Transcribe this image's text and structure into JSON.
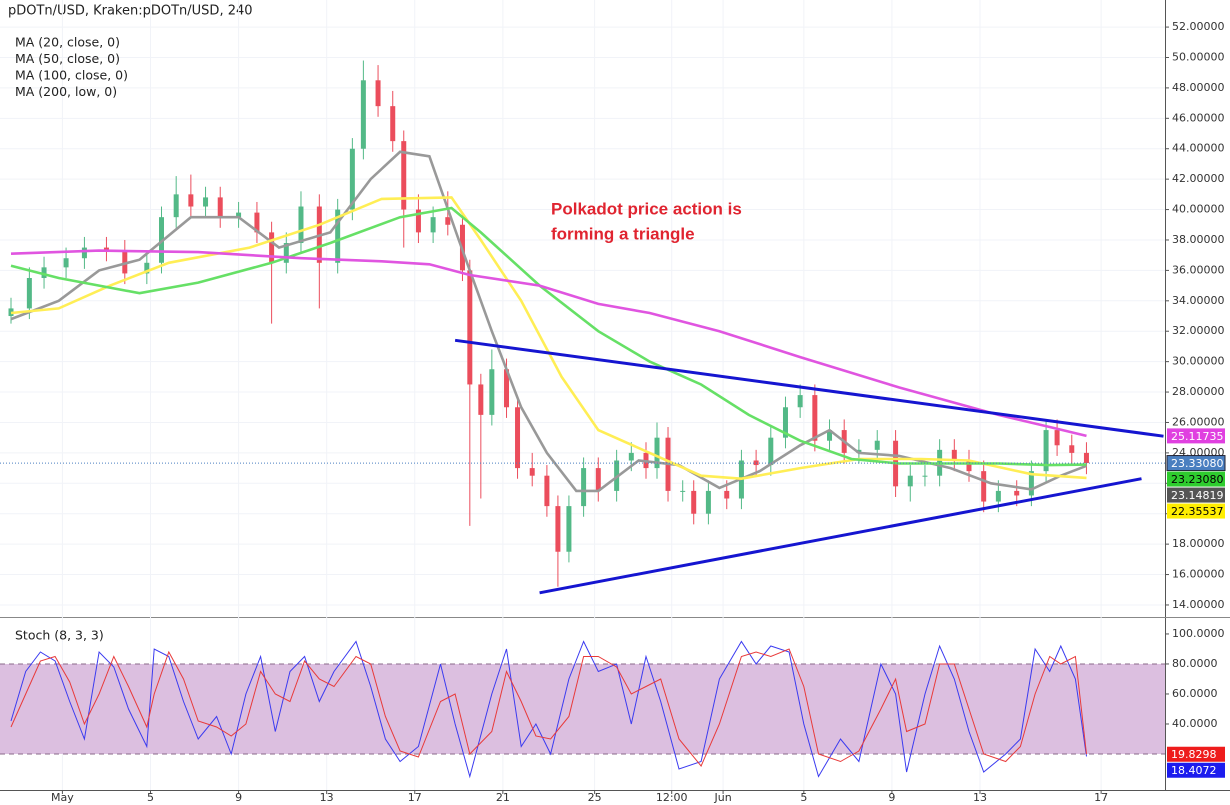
{
  "header": "pDOTn/USD, Kraken:pDOTn/USD, 240",
  "chart_data": [
    {
      "type": "candlestick",
      "annotation": [
        "Polkadot price action is",
        "forming a triangle"
      ],
      "up_color": "#53b987",
      "down_color": "#eb4d5c",
      "xlim": [
        0,
        317.4
      ],
      "ylim": [
        13.34,
        53.78
      ],
      "xticks": [
        {
          "value": 17,
          "label": "May"
        },
        {
          "value": 41,
          "label": "5"
        },
        {
          "value": 65,
          "label": "9"
        },
        {
          "value": 89,
          "label": "13"
        },
        {
          "value": 113,
          "label": "17"
        },
        {
          "value": 137,
          "label": "21"
        },
        {
          "value": 162,
          "label": "25"
        },
        {
          "value": 183,
          "label": "12:00"
        },
        {
          "value": 197,
          "label": "Jun"
        },
        {
          "value": 219,
          "label": "5"
        },
        {
          "value": 243,
          "label": "9"
        },
        {
          "value": 267,
          "label": "13"
        },
        {
          "value": 300,
          "label": "17"
        }
      ],
      "yticks": [
        {
          "value": 14,
          "label": "14.00000"
        },
        {
          "value": 16,
          "label": "16.00000"
        },
        {
          "value": 18,
          "label": "18.00000"
        },
        {
          "value": 20,
          "label": "20.00000"
        },
        {
          "value": 22,
          "label": "22.00000"
        },
        {
          "value": 24,
          "label": "24.00000"
        },
        {
          "value": 26,
          "label": "26.00000"
        },
        {
          "value": 28,
          "label": "28.00000"
        },
        {
          "value": 30,
          "label": "30.00000"
        },
        {
          "value": 32,
          "label": "32.00000"
        },
        {
          "value": 34,
          "label": "34.00000"
        },
        {
          "value": 36,
          "label": "36.00000"
        },
        {
          "value": 38,
          "label": "38.00000"
        },
        {
          "value": 40,
          "label": "40.00000"
        },
        {
          "value": 42,
          "label": "42.00000"
        },
        {
          "value": 44,
          "label": "44.00000"
        },
        {
          "value": 46,
          "label": "46.00000"
        },
        {
          "value": 48,
          "label": "48.00000"
        },
        {
          "value": 50,
          "label": "50.00000"
        },
        {
          "value": 52,
          "label": "52.00000"
        }
      ],
      "grid": true,
      "x": [
        3,
        8,
        12,
        18,
        23,
        29,
        34,
        40,
        44,
        48,
        52,
        56,
        60,
        65,
        70,
        74,
        78,
        82,
        87,
        92,
        96,
        99,
        103,
        107,
        110,
        114,
        118,
        122,
        126,
        128,
        131,
        134,
        138,
        141,
        145,
        149,
        152,
        155,
        159,
        163,
        168,
        172,
        176,
        179,
        182,
        186,
        189,
        193,
        198,
        202,
        206,
        210,
        214,
        218,
        222,
        226,
        230,
        234,
        239,
        244,
        248,
        252,
        256,
        260,
        264,
        268,
        272,
        277,
        281,
        285,
        288,
        292,
        296
      ],
      "open": [
        33,
        33.5,
        35.5,
        36.2,
        36.8,
        37.5,
        37.3,
        35.8,
        36.5,
        39.5,
        41,
        40.2,
        40.8,
        39.5,
        39.8,
        38.5,
        36.5,
        37.8,
        40.2,
        36.5,
        40,
        44,
        48.5,
        46.8,
        44.5,
        40,
        38.5,
        39.5,
        39,
        36,
        28.5,
        26.5,
        29.5,
        27,
        23,
        22.5,
        20.5,
        17.5,
        20.5,
        23,
        21.5,
        23.5,
        24,
        23,
        25,
        21.5,
        21.5,
        20,
        21.5,
        21,
        23.5,
        23.2,
        25,
        27,
        27.8,
        24.8,
        25.5,
        24,
        24.2,
        24.8,
        21.8,
        22.5,
        22.5,
        24.2,
        23.5,
        22.8,
        20.8,
        21.5,
        21.2,
        22.8,
        25.5,
        24.5,
        24
      ],
      "high": [
        34.2,
        36.2,
        36.9,
        37.5,
        38.2,
        38.2,
        38,
        37.2,
        40.2,
        42.2,
        42.3,
        41.5,
        41.5,
        40.5,
        40.5,
        39.2,
        38.5,
        41.2,
        41,
        40.7,
        44.7,
        49.8,
        49.5,
        47.8,
        45.2,
        41,
        40.2,
        41.2,
        39.7,
        36.7,
        29.2,
        30.8,
        30.2,
        27.7,
        24,
        23.2,
        21.2,
        21.2,
        23.7,
        23.7,
        24.2,
        24.7,
        24.7,
        26,
        25.7,
        22.2,
        22.2,
        22.2,
        22.2,
        24.2,
        24.2,
        25.7,
        27.7,
        28.5,
        28.5,
        26.2,
        26.2,
        24.9,
        25.5,
        25.5,
        23.2,
        23.2,
        24.9,
        24.9,
        24.2,
        23.5,
        22.2,
        22.2,
        23.5,
        26.2,
        26.2,
        25.2,
        24.7
      ],
      "low": [
        32.5,
        32.8,
        34.8,
        35.5,
        36.1,
        36.6,
        35.1,
        35.1,
        35.8,
        38.8,
        39.5,
        39.5,
        38.8,
        38.8,
        37.8,
        32.5,
        35.8,
        37.1,
        33.5,
        35.8,
        39.3,
        43.3,
        46.1,
        43.8,
        37.5,
        37.8,
        37.8,
        38.3,
        35.3,
        19.2,
        21,
        25.8,
        26.3,
        22.3,
        21.8,
        19.8,
        15.2,
        16.8,
        19.8,
        20.8,
        20.8,
        22.8,
        22.3,
        22.3,
        20.8,
        20.8,
        19.3,
        19.3,
        20.3,
        20.3,
        22.5,
        22.5,
        24.3,
        26.3,
        24.1,
        24.1,
        23.3,
        23.3,
        23.5,
        21.1,
        20.8,
        21.8,
        21.8,
        22.8,
        22.1,
        20.1,
        20.1,
        20.5,
        20.5,
        22.1,
        23.8,
        23.3,
        22.6
      ],
      "close": [
        33.5,
        35.5,
        36.2,
        36.8,
        37.5,
        37.3,
        35.8,
        36.5,
        39.5,
        41,
        40.2,
        40.8,
        39.5,
        39.8,
        38.5,
        36.5,
        37.8,
        40.2,
        36.5,
        40,
        44,
        48.5,
        46.8,
        44.5,
        40,
        38.5,
        39.5,
        39,
        36,
        28.5,
        26.5,
        29.5,
        27,
        23,
        22.5,
        20.5,
        17.5,
        20.5,
        23,
        21.5,
        23.5,
        24,
        23,
        25,
        21.5,
        21.5,
        20,
        21.5,
        21,
        23.5,
        23.2,
        25,
        27,
        27.8,
        24.8,
        25.5,
        24,
        24.2,
        24.8,
        21.8,
        22.5,
        22.5,
        24.2,
        23.5,
        22.8,
        20.8,
        21.5,
        21.2,
        22.8,
        25.5,
        24.5,
        24,
        23.3308
      ],
      "series": [
        {
          "name": "MA (20, close, 0)",
          "color": "#999999",
          "x": [
            3,
            16,
            27,
            38,
            52,
            65,
            76,
            90,
            101,
            109,
            117,
            125,
            134,
            142,
            149,
            157,
            163,
            174,
            185,
            196,
            207,
            218,
            226,
            234,
            245,
            259,
            270,
            281,
            289,
            296
          ],
          "values": [
            32.8,
            34,
            36,
            36.7,
            39.5,
            39.5,
            37.5,
            38.5,
            42,
            43.8,
            43.5,
            38,
            32,
            27,
            24,
            21.5,
            21.5,
            23.5,
            23.2,
            21.7,
            22.8,
            24.5,
            25.5,
            24,
            23.8,
            23,
            22,
            21.6,
            22.5,
            23.14819
          ]
        },
        {
          "name": "MA (50, close, 0)",
          "color": "#ffee55",
          "x": [
            3,
            16,
            30,
            46,
            68,
            87,
            104,
            123,
            131,
            142,
            153,
            163,
            177,
            191,
            202,
            218,
            234,
            251,
            264,
            281,
            296
          ],
          "values": [
            33.2,
            33.5,
            35,
            36.5,
            37.5,
            39,
            40.7,
            40.8,
            38,
            34,
            29,
            25.5,
            24,
            22.5,
            22.3,
            23,
            23.6,
            23.6,
            23.5,
            22.6,
            22.35537
          ]
        },
        {
          "name": "MA (100, close, 0)",
          "color": "#66e066",
          "x": [
            3,
            16,
            38,
            54,
            74,
            90,
            109,
            123,
            131,
            147,
            163,
            177,
            191,
            204,
            218,
            232,
            245,
            259,
            272,
            286,
            296
          ],
          "values": [
            36.3,
            35.5,
            34.5,
            35.2,
            36.5,
            37.8,
            39.5,
            40.1,
            38.5,
            35,
            32,
            30,
            28.5,
            26.5,
            24.8,
            23.6,
            23.3,
            23.3,
            23.3,
            23.2,
            23.2308
          ]
        },
        {
          "name": "MA (200, low, 0)",
          "color": "#e055e0",
          "x": [
            3,
            27,
            54,
            82,
            104,
            117,
            128,
            147,
            163,
            177,
            196,
            218,
            245,
            272,
            286,
            296
          ],
          "values": [
            37.1,
            37.3,
            37.2,
            36.8,
            36.6,
            36.4,
            35.7,
            35,
            33.8,
            33.2,
            32,
            30.3,
            28.3,
            26.5,
            25.7,
            25.11735
          ]
        }
      ],
      "trendlines": [
        {
          "color": "#1515d0",
          "x": [
            124,
            317
          ],
          "values": [
            31.4,
            25.1
          ]
        },
        {
          "color": "#1515d0",
          "x": [
            147,
            311
          ],
          "values": [
            14.8,
            22.3
          ]
        }
      ],
      "price_tags": [
        {
          "value": 25.11735,
          "label": "25.11735",
          "color": "#e040e0"
        },
        {
          "value": 23.3308,
          "label": "23.33080",
          "color": "#4a7fc0",
          "dotted": true
        },
        {
          "value": 23.2308,
          "label": "23.23080",
          "color": "#2ecc2e"
        },
        {
          "value": 23.14819,
          "label": "23.14819",
          "color": "#555555"
        },
        {
          "value": 22.35537,
          "label": "22.35537",
          "color": "#ffee00"
        }
      ]
    },
    {
      "type": "line",
      "title": "Stoch (8, 3, 3)",
      "xlim": [
        0,
        317.4
      ],
      "ylim": [
        -4,
        109.3
      ],
      "yticks": [
        {
          "value": 40,
          "label": "40.0000"
        },
        {
          "value": 60,
          "label": "60.0000"
        },
        {
          "value": 80,
          "label": "80.0000"
        },
        {
          "value": 100,
          "label": "100.0000"
        }
      ],
      "band": [
        20,
        80
      ],
      "band_color": "#dcbfe0",
      "series": [
        {
          "color": "#3b3bf0",
          "x": [
            3,
            7,
            11,
            15,
            19,
            23,
            27,
            31,
            35,
            40,
            42,
            46,
            50,
            54,
            59,
            63,
            67,
            71,
            75,
            79,
            83,
            87,
            91,
            97,
            101,
            105,
            109,
            114,
            120,
            124,
            128,
            134,
            138,
            142,
            146,
            150,
            155,
            159,
            163,
            168,
            172,
            176,
            180,
            185,
            191,
            196,
            202,
            206,
            210,
            215,
            219,
            223,
            229,
            234,
            240,
            244,
            247,
            252,
            256,
            260,
            264,
            268,
            274,
            278,
            282,
            286,
            289,
            293,
            296
          ],
          "values": [
            42,
            75,
            88,
            82,
            55,
            30,
            88,
            78,
            50,
            25,
            90,
            85,
            55,
            30,
            45,
            20,
            60,
            85,
            35,
            75,
            85,
            55,
            75,
            95,
            65,
            30,
            15,
            25,
            80,
            40,
            5,
            60,
            90,
            25,
            40,
            20,
            70,
            95,
            75,
            80,
            40,
            85,
            55,
            10,
            15,
            70,
            95,
            80,
            92,
            88,
            40,
            5,
            30,
            15,
            80,
            60,
            8,
            60,
            92,
            70,
            35,
            8,
            20,
            30,
            90,
            75,
            92,
            70,
            18.4072
          ]
        },
        {
          "color": "#e83a3a",
          "x": [
            3,
            7,
            11,
            15,
            19,
            23,
            27,
            31,
            35,
            40,
            42,
            46,
            50,
            54,
            59,
            63,
            67,
            71,
            75,
            79,
            83,
            87,
            91,
            97,
            101,
            105,
            109,
            114,
            120,
            124,
            128,
            134,
            138,
            142,
            146,
            150,
            155,
            159,
            163,
            168,
            172,
            176,
            180,
            185,
            191,
            196,
            202,
            206,
            210,
            215,
            219,
            223,
            229,
            234,
            240,
            244,
            247,
            252,
            256,
            260,
            264,
            268,
            274,
            278,
            282,
            286,
            289,
            293,
            296
          ],
          "values": [
            38,
            60,
            82,
            85,
            68,
            40,
            60,
            85,
            65,
            38,
            60,
            88,
            70,
            42,
            38,
            32,
            40,
            75,
            60,
            55,
            82,
            70,
            65,
            85,
            80,
            45,
            22,
            18,
            55,
            60,
            20,
            35,
            75,
            55,
            32,
            30,
            45,
            85,
            85,
            78,
            60,
            65,
            70,
            30,
            12,
            40,
            85,
            88,
            85,
            90,
            65,
            20,
            15,
            22,
            50,
            70,
            35,
            40,
            80,
            80,
            50,
            20,
            15,
            25,
            60,
            85,
            80,
            85,
            19.8298
          ]
        }
      ],
      "price_tags": [
        {
          "value": 19.8298,
          "label": "19.8298",
          "color": "#ee1c1c"
        },
        {
          "value": 18.4072,
          "label": "18.4072",
          "color": "#1c1cee"
        }
      ]
    }
  ]
}
